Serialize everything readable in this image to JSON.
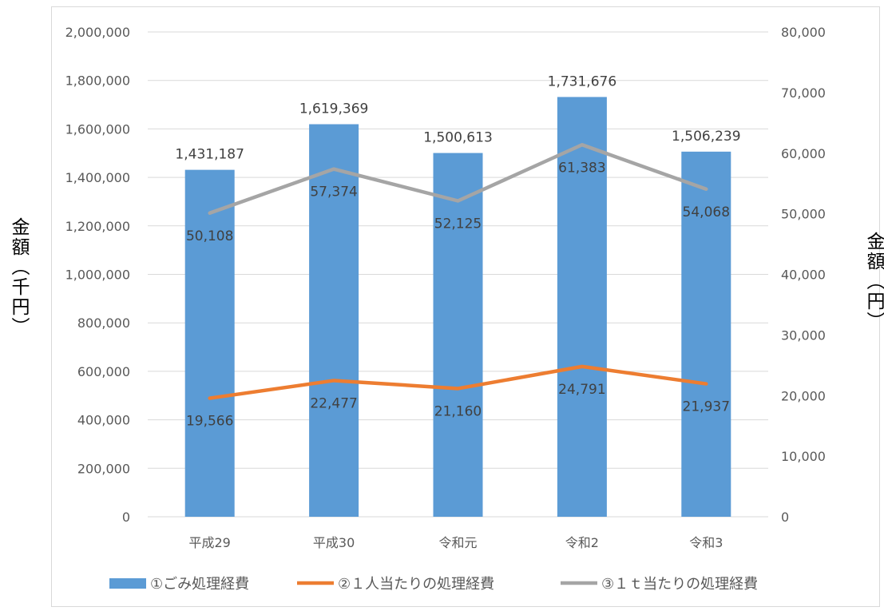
{
  "chart_data": {
    "type": "bar",
    "categories": [
      "平成29",
      "平成30",
      "令和元",
      "令和2",
      "令和3"
    ],
    "series": [
      {
        "name": "①ごみ処理経費",
        "kind": "bar",
        "axis": "left",
        "color": "#5b9bd5",
        "values": [
          1431187,
          1619369,
          1500613,
          1731676,
          1506239
        ],
        "labels": [
          "1,431,187",
          "1,619,369",
          "1,500,613",
          "1,731,676",
          "1,506,239"
        ]
      },
      {
        "name": "②１人当たりの処理経費",
        "kind": "line",
        "axis": "right",
        "color": "#ed7d31",
        "values": [
          19566,
          22477,
          21160,
          24791,
          21937
        ],
        "labels": [
          "19,566",
          "22,477",
          "21,160",
          "24,791",
          "21,937"
        ]
      },
      {
        "name": "③１ｔ当たりの処理経費",
        "kind": "line",
        "axis": "right",
        "color": "#a5a5a5",
        "values": [
          50108,
          57374,
          52125,
          61383,
          54068
        ],
        "labels": [
          "50,108",
          "57,374",
          "52,125",
          "61,383",
          "54,068"
        ]
      }
    ],
    "left_axis": {
      "label": "金額（千円）",
      "ylim": [
        0,
        2000000
      ],
      "ticks": [
        0,
        200000,
        400000,
        600000,
        800000,
        1000000,
        1200000,
        1400000,
        1600000,
        1800000,
        2000000
      ],
      "tick_labels": [
        "0",
        "200,000",
        "400,000",
        "600,000",
        "800,000",
        "1,000,000",
        "1,200,000",
        "1,400,000",
        "1,600,000",
        "1,800,000",
        "2,000,000"
      ]
    },
    "right_axis": {
      "label": "金額（円）",
      "ylim": [
        0,
        80000
      ],
      "ticks": [
        0,
        10000,
        20000,
        30000,
        40000,
        50000,
        60000,
        70000,
        80000
      ],
      "tick_labels": [
        "0",
        "10,000",
        "20,000",
        "30,000",
        "40,000",
        "50,000",
        "60,000",
        "70,000",
        "80,000"
      ]
    },
    "grid": true,
    "legend": "bottom"
  }
}
